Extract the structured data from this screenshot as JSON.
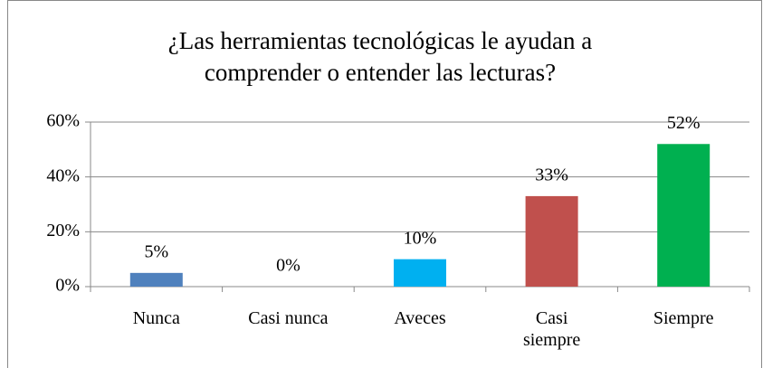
{
  "chart_data": {
    "type": "bar",
    "title": "¿Las herramientas tecnológicas le ayudan a comprender o entender las lecturas?",
    "categories": [
      "Nunca",
      "Casi nunca",
      "Aveces",
      "Casi siempre",
      "Siempre"
    ],
    "values": [
      5,
      0,
      10,
      33,
      52
    ],
    "value_labels": [
      "5%",
      "0%",
      "10%",
      "33%",
      "52%"
    ],
    "colors": [
      "#4f81bd",
      "#4f81bd",
      "#00b0f0",
      "#c0504d",
      "#00b050"
    ],
    "ylim": [
      0,
      60
    ],
    "yticks": [
      {
        "value": 0,
        "label": "0%"
      },
      {
        "value": 20,
        "label": "20%"
      },
      {
        "value": 40,
        "label": "40%"
      },
      {
        "value": 60,
        "label": "60%"
      }
    ],
    "grid": true
  }
}
